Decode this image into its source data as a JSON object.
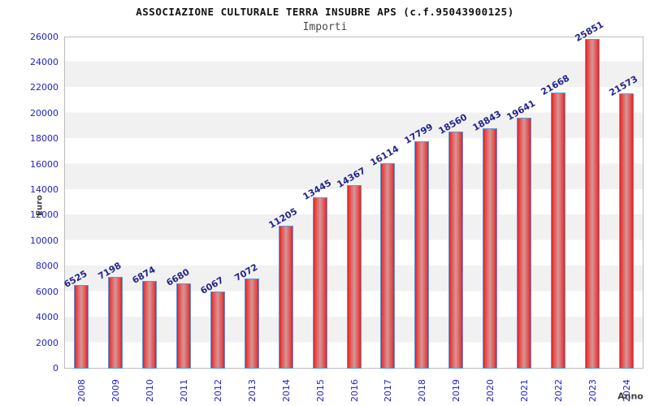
{
  "header": {
    "title": "ASSOCIAZIONE CULTURALE TERRA INSUBRE APS (c.f.95043900125)",
    "subtitle": "Importi"
  },
  "axes": {
    "y_title": "Euro",
    "x_title": "Anno"
  },
  "chart_data": {
    "type": "bar",
    "title": "ASSOCIAZIONE CULTURALE TERRA INSUBRE APS (c.f.95043900125)",
    "subtitle": "Importi",
    "xlabel": "Anno",
    "ylabel": "Euro",
    "categories": [
      "2008",
      "2009",
      "2010",
      "2011",
      "2012",
      "2013",
      "2014",
      "2015",
      "2016",
      "2017",
      "2018",
      "2019",
      "2020",
      "2021",
      "2022",
      "2023",
      "2024"
    ],
    "values": [
      6525,
      7198,
      6874,
      6680,
      6067,
      7072,
      11205,
      13445,
      14367,
      16114,
      17799,
      18560,
      18843,
      19641,
      21668,
      25851,
      21573
    ],
    "ylim": [
      0,
      26000
    ],
    "y_ticks": [
      0,
      2000,
      4000,
      6000,
      8000,
      10000,
      12000,
      14000,
      16000,
      18000,
      20000,
      22000,
      24000,
      26000
    ],
    "grid": "alternating horizontal bands every 2000, no vertical gridlines",
    "legend": "none",
    "style": {
      "bar_edge_color": "#dd2020",
      "bar_mid_color": "#d29898",
      "bar_border_color": "#5599e0",
      "tick_label_color": "#2222cc",
      "value_label_color": "#24248e",
      "band_gray": "#f1f1f1",
      "band_white": "#ffffff",
      "axis_title_color": "#3d3d3d",
      "title_color": "#111111",
      "subtitle_color": "#4a4a4a"
    }
  }
}
